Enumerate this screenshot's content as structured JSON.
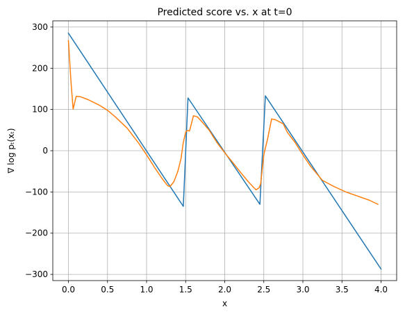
{
  "chart_data": {
    "type": "line",
    "title": "Predicted score vs. x at t=0",
    "xlabel": "x",
    "ylabel": "∇ log pₜ(xₜ)",
    "xlim": [
      -0.2,
      4.2
    ],
    "ylim": [
      -315,
      315
    ],
    "xticks": [
      "0.0",
      "0.5",
      "1.0",
      "1.5",
      "2.0",
      "2.5",
      "3.0",
      "3.5",
      "4.0"
    ],
    "xtick_values": [
      0,
      0.5,
      1.0,
      1.5,
      2.0,
      2.5,
      3.0,
      3.5,
      4.0
    ],
    "yticks": [
      "−300",
      "−200",
      "−100",
      "0",
      "100",
      "200",
      "300"
    ],
    "ytick_values": [
      -300,
      -200,
      -100,
      0,
      100,
      200,
      300
    ],
    "grid": true,
    "series": [
      {
        "color": "#1f77b4",
        "x": [
          0.0,
          1.47,
          1.53,
          2.45,
          2.52,
          4.0
        ],
        "y": [
          285,
          -135,
          128,
          -130,
          133,
          -287
        ]
      },
      {
        "color": "#ff7f0e",
        "x": [
          0.0,
          0.03,
          0.06,
          0.1,
          0.15,
          0.25,
          0.4,
          0.5,
          0.6,
          0.75,
          0.9,
          1.0,
          1.1,
          1.2,
          1.27,
          1.3,
          1.35,
          1.4,
          1.44,
          1.47,
          1.5,
          1.52,
          1.55,
          1.58,
          1.6,
          1.65,
          1.7,
          1.8,
          1.9,
          2.0,
          2.1,
          2.2,
          2.3,
          2.4,
          2.44,
          2.46,
          2.48,
          2.5,
          2.55,
          2.6,
          2.65,
          2.7,
          2.75,
          2.8,
          2.9,
          3.0,
          3.1,
          3.25,
          3.4,
          3.55,
          3.7,
          3.85,
          3.96
        ],
        "y": [
          267,
          175,
          101,
          132,
          131,
          124,
          110,
          98,
          82,
          55,
          18,
          -10,
          -40,
          -68,
          -85,
          -87,
          -75,
          -50,
          -20,
          20,
          45,
          49,
          48,
          70,
          85,
          82,
          72,
          50,
          20,
          -5,
          -28,
          -52,
          -75,
          -95,
          -90,
          -80,
          -45,
          -10,
          30,
          77,
          75,
          70,
          65,
          45,
          20,
          -10,
          -38,
          -72,
          -87,
          -100,
          -110,
          -120,
          -130
        ]
      }
    ]
  }
}
